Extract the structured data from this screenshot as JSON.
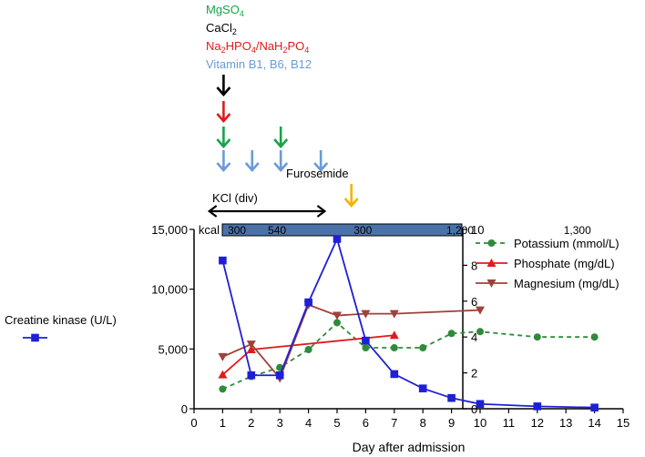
{
  "chart_data": {
    "type": "line",
    "xlabel": "Day after admission",
    "xlim": [
      0,
      15
    ],
    "x_ticks": [
      "0",
      "1",
      "2",
      "3",
      "4",
      "5",
      "6",
      "7",
      "8",
      "9",
      "10",
      "11",
      "12",
      "13",
      "14",
      "15"
    ],
    "left_axis": {
      "ylim": [
        0,
        15000
      ],
      "ticks": [
        "0",
        "5,000",
        "10,000",
        "15,000"
      ]
    },
    "right_axis": {
      "ylim": [
        0,
        10
      ],
      "ticks": [
        "0",
        "2",
        "4",
        "6",
        "8",
        "10"
      ]
    },
    "series": [
      {
        "name": "Creatine kinase (U/L)",
        "axis": "left",
        "color": "#1f1fd6",
        "marker": "square",
        "line": "solid",
        "points": [
          [
            1,
            12400
          ],
          [
            2,
            2800
          ],
          [
            3,
            2800
          ],
          [
            4,
            8900
          ],
          [
            5,
            14200
          ],
          [
            6,
            5700
          ],
          [
            7,
            2900
          ],
          [
            8,
            1700
          ],
          [
            9,
            900
          ],
          [
            10,
            400
          ],
          [
            12,
            200
          ],
          [
            14,
            100
          ]
        ]
      },
      {
        "name": "Potassium (mmol/L)",
        "axis": "right",
        "color": "#2e8b3a",
        "marker": "circle",
        "line": "dashed",
        "points": [
          [
            1,
            1.1
          ],
          [
            2,
            1.8
          ],
          [
            3,
            2.3
          ],
          [
            4,
            3.3
          ],
          [
            5,
            4.8
          ],
          [
            6,
            3.4
          ],
          [
            7,
            3.4
          ],
          [
            8,
            3.4
          ],
          [
            9,
            4.2
          ],
          [
            10,
            4.3
          ],
          [
            12,
            4.0
          ],
          [
            14,
            4.0
          ]
        ]
      },
      {
        "name": "Phosphate (mg/dL)",
        "axis": "right",
        "color": "#e01b1b",
        "marker": "triangle-up",
        "line": "solid",
        "points": [
          [
            1,
            1.9
          ],
          [
            2,
            3.3
          ],
          [
            7,
            4.1
          ]
        ]
      },
      {
        "name": "Magnesium (mg/dL)",
        "axis": "right",
        "color": "#a0403a",
        "marker": "triangle-down",
        "line": "solid",
        "points": [
          [
            1,
            2.9
          ],
          [
            2,
            3.6
          ],
          [
            3,
            1.7
          ],
          [
            4,
            5.8
          ],
          [
            5,
            5.2
          ],
          [
            6,
            5.3
          ],
          [
            7,
            5.3
          ],
          [
            10,
            5.5
          ]
        ]
      }
    ],
    "legend_placement": "right",
    "kcal_bar": {
      "label": "kcal",
      "color": "#4a72a8",
      "values": [
        {
          "x": 1.5,
          "label": "300"
        },
        {
          "x": 2.9,
          "label": "540"
        },
        {
          "x": 5.9,
          "label": "300"
        },
        {
          "x": 9.3,
          "label": "1,200"
        },
        {
          "x": 13.4,
          "label": "1,300"
        }
      ]
    },
    "drug_legend": [
      {
        "name": "MgSO",
        "sub": "4",
        "color": "#16a34a"
      },
      {
        "name": "CaCl",
        "sub": "2",
        "color": "#000000"
      },
      {
        "name": "Na2HPO4/NaH2PO4",
        "parts": [
          [
            "Na",
            ""
          ],
          [
            "2",
            "sub"
          ],
          [
            "HPO",
            ""
          ],
          [
            "4",
            "sub"
          ],
          [
            "/NaH",
            ""
          ],
          [
            "2",
            "sub"
          ],
          [
            "PO",
            ""
          ],
          [
            "4",
            "sub"
          ]
        ],
        "color": "#e01b1b"
      },
      {
        "name": "Vitamin B1, B6, B12",
        "color": "#6a9bd8"
      }
    ],
    "drug_arrows": [
      {
        "drug": "CaCl2",
        "day": 1,
        "row": 0,
        "color": "#000000"
      },
      {
        "drug": "Na2HPO4/NaH2PO4",
        "day": 1,
        "row": 1,
        "color": "#e01b1b"
      },
      {
        "drug": "MgSO4",
        "day": 1,
        "row": 2,
        "color": "#16a34a"
      },
      {
        "drug": "MgSO4",
        "day": 3,
        "row": 2,
        "color": "#16a34a"
      },
      {
        "drug": "Vitamin B",
        "day": 1,
        "row": 3,
        "color": "#6a9bd8"
      },
      {
        "drug": "Vitamin B",
        "day": 2,
        "row": 3,
        "color": "#6a9bd8"
      },
      {
        "drug": "Vitamin B",
        "day": 3,
        "row": 3,
        "color": "#6a9bd8"
      },
      {
        "drug": "Vitamin B",
        "day": 4.4,
        "row": 3,
        "color": "#6a9bd8"
      }
    ],
    "furosemide": {
      "label": "Furosemide",
      "day": 5.5,
      "color": "#f2b400"
    },
    "kcl": {
      "label": "KCl (div)",
      "from": 0.5,
      "to": 4.6
    }
  }
}
